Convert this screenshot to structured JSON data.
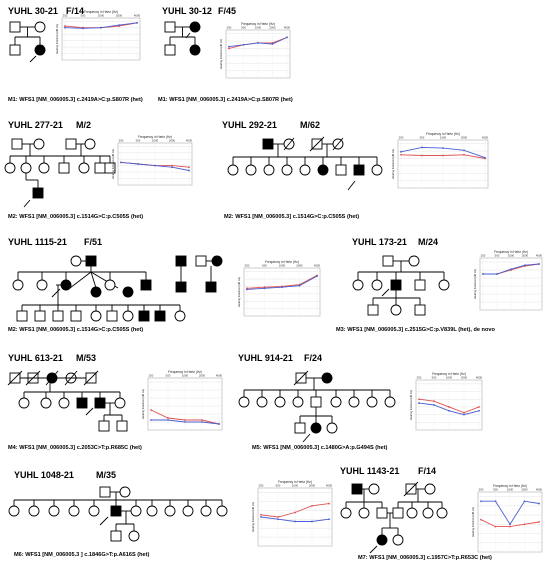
{
  "panels": [
    {
      "id": "YUHL 30-21",
      "sex_age": "F/14",
      "variant": "M1: WFS1 [NM_006005.3] c.2419A>C:p.S807R (het)"
    },
    {
      "id": "YUHL 30-12",
      "sex_age": "F/45",
      "variant": "M1: WFS1 [NM_006005.3] c.2419A>C:p.S807R (het)"
    },
    {
      "id": "YUHL 277-21",
      "sex_age": "M/2",
      "variant": "M2: WFS1 [NM_006005.3] c.1514G>C:p.C505S (het)"
    },
    {
      "id": "YUHL 292-21",
      "sex_age": "M/62",
      "variant": "M2: WFS1 [NM_006005.3] c.1514G>C:p.C505S (het)"
    },
    {
      "id": "YUHL 1115-21",
      "sex_age": "F/51",
      "variant": "M2: WFS1 [NM_006005.3] c.1514G>C:p.C505S (het)"
    },
    {
      "id": "YUHL 173-21",
      "sex_age": "M/24",
      "variant": "M3: WFS1 [NM_006005.3] c.2515G>C:p.V839L (het), de novo"
    },
    {
      "id": "YUHL 613-21",
      "sex_age": "M/53",
      "variant": "M4: WFS1 [NM_006005.3] c.2053C>T:p.R685C (het)"
    },
    {
      "id": "YUHL 914-21",
      "sex_age": "F/24",
      "variant": "M5: WFS1 [NM_006005.3] c.1480G>A:p.G494S (het)"
    },
    {
      "id": "YUHL 1048-21",
      "sex_age": "M/35",
      "variant": "M6: WFS1 [NM_006005.3 ] c.1846G>T:p.A616S (het)"
    },
    {
      "id": "YUHL 1143-21",
      "sex_age": "F/14",
      "variant": "M7: WFS1 [NM_006005.3] c.1957C>T:p.R653C (het)"
    }
  ],
  "audiogram": {
    "title": "Frequency in Hertz (Hz)",
    "ylabel": "Hearing threshold (dB HL)",
    "frequencies": [
      "250",
      "500",
      "1000",
      "2000",
      "4000"
    ],
    "colors": {
      "right": "#e05050",
      "left": "#4a5fd0"
    }
  },
  "chart_data": [
    {
      "type": "line",
      "panel": "YUHL 30-21",
      "x": [
        250,
        500,
        1000,
        2000,
        4000
      ],
      "ylim": [
        -10,
        120
      ],
      "series": [
        {
          "values": [
            15,
            20,
            20,
            15,
            5
          ]
        },
        {
          "values": [
            20,
            22,
            20,
            12,
            5
          ]
        }
      ]
    },
    {
      "type": "line",
      "panel": "YUHL 30-12",
      "x": [
        250,
        500,
        1000,
        2000,
        4000
      ],
      "ylim": [
        -10,
        120
      ],
      "series": [
        {
          "values": [
            40,
            30,
            25,
            25,
            10
          ]
        },
        {
          "values": [
            35,
            30,
            25,
            28,
            10
          ]
        }
      ]
    },
    {
      "type": "line",
      "panel": "YUHL 277-21",
      "x": [
        250,
        500,
        1000,
        2000,
        4000
      ],
      "ylim": [
        -10,
        120
      ],
      "series": [
        {
          "values": [
            50,
            55,
            60,
            60,
            65
          ]
        },
        {
          "values": [
            50,
            55,
            60,
            65,
            75
          ]
        }
      ]
    },
    {
      "type": "line",
      "panel": "YUHL 292-21",
      "x": [
        250,
        500,
        1000,
        2000,
        4000
      ],
      "ylim": [
        -10,
        120
      ],
      "series": [
        {
          "values": [
            30,
            32,
            32,
            30,
            40
          ]
        },
        {
          "values": [
            22,
            10,
            12,
            18,
            38
          ]
        }
      ]
    },
    {
      "type": "line",
      "panel": "YUHL 1115-21",
      "x": [
        250,
        500,
        1000,
        2000,
        4000
      ],
      "ylim": [
        -10,
        120
      ],
      "series": [
        {
          "values": [
            45,
            42,
            40,
            35,
            10
          ]
        },
        {
          "values": [
            48,
            45,
            42,
            38,
            12
          ]
        }
      ]
    },
    {
      "type": "line",
      "panel": "YUHL 173-21",
      "x": [
        250,
        500,
        1000,
        2000,
        4000
      ],
      "ylim": [
        -10,
        120
      ],
      "series": [
        {
          "values": [
            30,
            30,
            20,
            10,
            5
          ]
        },
        {
          "values": [
            30,
            30,
            18,
            8,
            5
          ]
        }
      ]
    },
    {
      "type": "line",
      "panel": "YUHL 613-21",
      "x": [
        250,
        500,
        1000,
        2000,
        4000
      ],
      "ylim": [
        -10,
        120
      ],
      "series": [
        {
          "values": [
            70,
            90,
            95,
            95,
            105
          ]
        },
        {
          "values": [
            95,
            95,
            100,
            100,
            105
          ]
        }
      ]
    },
    {
      "type": "line",
      "panel": "YUHL 914-21",
      "x": [
        250,
        500,
        1000,
        2000,
        4000
      ],
      "ylim": [
        -10,
        120
      ],
      "series": [
        {
          "values": [
            40,
            45,
            60,
            75,
            60
          ]
        },
        {
          "values": [
            50,
            55,
            70,
            80,
            70
          ]
        }
      ]
    },
    {
      "type": "line",
      "panel": "YUHL 1048-21",
      "x": [
        250,
        500,
        1000,
        2000,
        4000
      ],
      "ylim": [
        -10,
        120
      ],
      "series": [
        {
          "values": [
            50,
            55,
            45,
            30,
            25
          ]
        },
        {
          "values": [
            55,
            60,
            65,
            65,
            60
          ]
        }
      ]
    },
    {
      "type": "line",
      "panel": "YUHL 1143-21",
      "x": [
        250,
        500,
        1000,
        2000,
        4000
      ],
      "ylim": [
        -10,
        120
      ],
      "series": [
        {
          "values": [
            50,
            65,
            65,
            60,
            55
          ]
        },
        {
          "values": [
            10,
            10,
            60,
            10,
            15
          ]
        }
      ]
    }
  ]
}
